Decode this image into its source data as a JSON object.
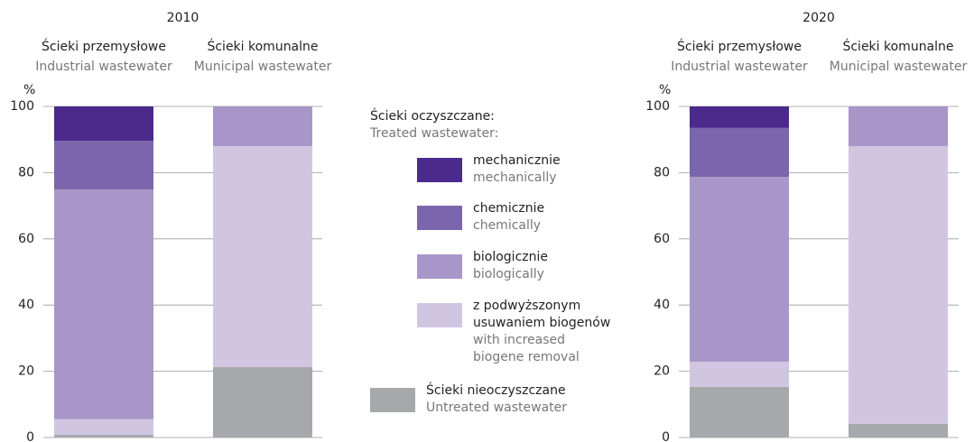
{
  "legend": {
    "title": "Ścieki oczyszczane:",
    "title_en": "Treated wastewater:"
  },
  "chart_data": [
    {
      "type": "bar",
      "stacked": true,
      "title": "2010",
      "ylabel": "%",
      "categories": [
        "Ścieki przemysłowe",
        "Ścieki komunalne"
      ],
      "categories_en": [
        "Industrial wastewater",
        "Municipal wastewater"
      ],
      "ylim": [
        0,
        100
      ],
      "yticks": [
        0,
        20,
        40,
        60,
        80,
        100
      ],
      "grid": true,
      "series": [
        {
          "name": "Ścieki nieoczyszczane",
          "name_en": "Untreated wastewater",
          "color": "#a7a8ab",
          "values": [
            0.8,
            21.3
          ]
        },
        {
          "name": "z podwyższonym usuwaniem biogenów",
          "name_en": "with increased biogene removal",
          "color": "#d0c6e2",
          "values": [
            4.7,
            66.7
          ]
        },
        {
          "name": "biologicznie",
          "name_en": "biologically",
          "color": "#a896c8",
          "values": [
            69.4,
            12.0
          ]
        },
        {
          "name": "chemicznie",
          "name_en": "chemically",
          "color": "#7b65ad",
          "values": [
            14.7,
            0
          ]
        },
        {
          "name": "mechanicznie",
          "name_en": "mechanically",
          "color": "#4b2a8c",
          "values": [
            10.4,
            0
          ]
        }
      ]
    },
    {
      "type": "bar",
      "stacked": true,
      "title": "2020",
      "ylabel": "%",
      "categories": [
        "Ścieki przemysłowe",
        "Ścieki komunalne"
      ],
      "categories_en": [
        "Industrial wastewater",
        "Municipal wastewater"
      ],
      "ylim": [
        0,
        100
      ],
      "yticks": [
        0,
        20,
        40,
        60,
        80,
        100
      ],
      "grid": true,
      "series": [
        {
          "color": "#a7a8ab",
          "values": [
            15.3,
            4.1
          ]
        },
        {
          "color": "#d0c6e2",
          "values": [
            7.6,
            83.9
          ]
        },
        {
          "color": "#a896c8",
          "values": [
            55.8,
            12.0
          ]
        },
        {
          "color": "#7b65ad",
          "values": [
            14.8,
            0
          ]
        },
        {
          "color": "#4b2a8c",
          "values": [
            6.5,
            0
          ]
        }
      ]
    }
  ]
}
